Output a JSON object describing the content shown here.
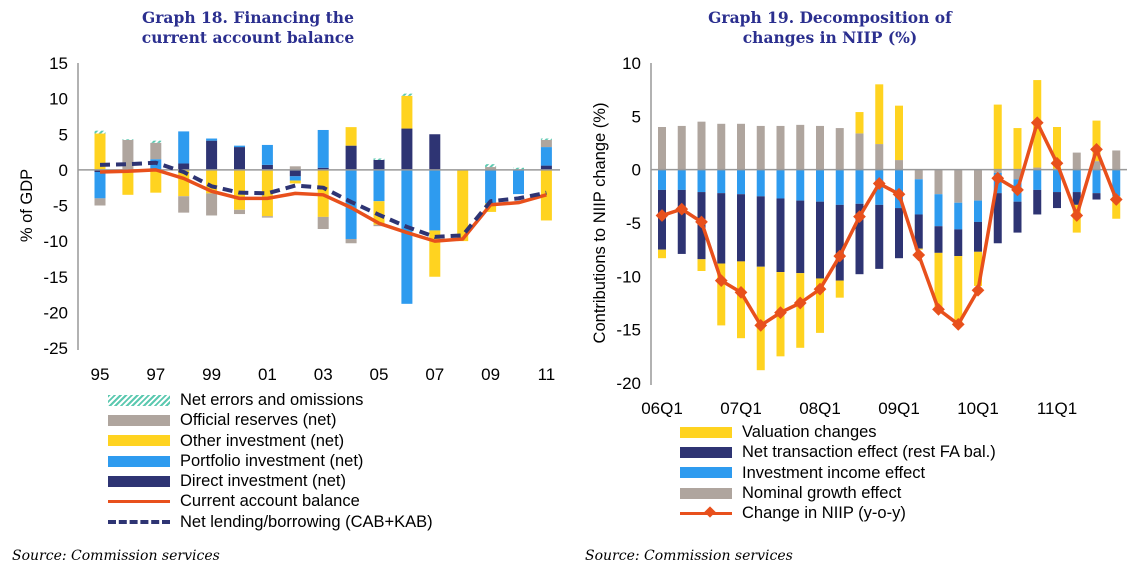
{
  "colors": {
    "direct": "#2e3473",
    "portfolio": "#2e9bef",
    "other": "#ffd320",
    "reserves": "#afa59e",
    "errors": "#5cc9b0",
    "cab": "#e8501c",
    "nlb": "#2e3473",
    "title": "#2b2f8f"
  },
  "chart_data": [
    {
      "type": "bar",
      "title": "Graph 18. Financing the current account balance",
      "ylabel": "% of GDP",
      "xlabel": "",
      "ylim": [
        -25,
        15
      ],
      "yticks": [
        "15",
        "10",
        "5",
        "0",
        "-5",
        "-10",
        "-15",
        "-20",
        "-25"
      ],
      "ytick_values": [
        15,
        10,
        5,
        0,
        -5,
        -10,
        -15,
        -20,
        -25
      ],
      "categories": [
        "95",
        "96",
        "97",
        "98",
        "99",
        "00",
        "01",
        "02",
        "03",
        "04",
        "05",
        "06",
        "07",
        "08",
        "09",
        "10",
        "11"
      ],
      "xtick_labels": [
        "95",
        "97",
        "99",
        "01",
        "03",
        "05",
        "07",
        "09",
        "11"
      ],
      "stacked": true,
      "series": [
        {
          "name": "Direct investment (net)",
          "key": "direct",
          "values": [
            -0.3,
            0,
            0,
            0.9,
            4.1,
            3.2,
            0.7,
            -0.9,
            0.3,
            3.4,
            1.4,
            5.8,
            5.0,
            0,
            0,
            0,
            0.6
          ]
        },
        {
          "name": "Portfolio investment (net)",
          "key": "portfolio",
          "values": [
            -3.7,
            0,
            1.5,
            4.5,
            0.3,
            0.2,
            2.8,
            -0.6,
            5.3,
            -9.7,
            -4.4,
            -18.8,
            -8.5,
            0,
            -4.7,
            -3.4,
            2.6
          ]
        },
        {
          "name": "Other investment (net)",
          "key": "other",
          "values": [
            5.1,
            -3.5,
            -3.2,
            -3.7,
            -3.3,
            -5.6,
            -6.5,
            -0.4,
            -6.6,
            2.6,
            -3.3,
            4.6,
            -6.5,
            -10.0,
            -1.2,
            0,
            -7.1
          ]
        },
        {
          "name": "Official reserves (net)",
          "key": "reserves",
          "values": [
            -1.0,
            4.2,
            2.3,
            -2.3,
            -3.1,
            -0.6,
            -0.2,
            0.5,
            -1.7,
            -0.6,
            -0.2,
            0,
            0,
            0,
            0.4,
            0,
            1.0
          ]
        },
        {
          "name": "Net errors and omissions",
          "key": "errors",
          "values": [
            0.4,
            0.1,
            0.3,
            0,
            0,
            0,
            0,
            0,
            0,
            0,
            0.2,
            0.3,
            0,
            0,
            0.4,
            0.3,
            0.2
          ]
        }
      ],
      "lines": [
        {
          "name": "Current account balance",
          "key": "cab",
          "values": [
            -0.3,
            -0.2,
            0,
            -1.2,
            -3.0,
            -4.0,
            -4.0,
            -3.3,
            -3.5,
            -5.3,
            -7.5,
            -8.8,
            -10.0,
            -9.7,
            -4.9,
            -4.6,
            -3.5
          ]
        },
        {
          "name": "Net lending/borrowing (CAB+KAB)",
          "key": "nlb",
          "dashed": true,
          "values": [
            0.7,
            0.8,
            1.0,
            -0.3,
            -2.3,
            -3.2,
            -3.3,
            -2.2,
            -2.5,
            -4.5,
            -6.3,
            -8.0,
            -9.4,
            -9.2,
            -4.4,
            -4.0,
            -3.2
          ]
        }
      ],
      "legend": [
        "Net errors and omissions",
        "Official reserves (net)",
        "Other investment (net)",
        "Portfolio investment (net)",
        "Direct investment (net)",
        "Current account balance",
        "Net lending/borrowing (CAB+KAB)"
      ],
      "legend_position": "bottom",
      "source": "Source: Commission services"
    },
    {
      "type": "bar",
      "title": "Graph 19. Decomposition of changes in NIIP (%)",
      "ylabel": "Contributions to NIIP change (%)",
      "xlabel": "",
      "ylim": [
        -20,
        10
      ],
      "yticks": [
        "10",
        "5",
        "0",
        "-5",
        "-10",
        "-15",
        "-20"
      ],
      "ytick_values": [
        10,
        5,
        0,
        -5,
        -10,
        -15,
        -20
      ],
      "categories": [
        "06Q1",
        "06Q2",
        "06Q3",
        "06Q4",
        "07Q1",
        "07Q2",
        "07Q3",
        "07Q4",
        "08Q1",
        "08Q2",
        "08Q3",
        "08Q4",
        "09Q1",
        "09Q2",
        "09Q3",
        "09Q4",
        "10Q1",
        "10Q2",
        "10Q3",
        "10Q4",
        "11Q1",
        "11Q2",
        "11Q3",
        "11Q4"
      ],
      "xtick_labels": [
        "06Q1",
        "07Q1",
        "08Q1",
        "09Q1",
        "10Q1",
        "11Q1"
      ],
      "stacked": true,
      "series": [
        {
          "name": "Nominal growth effect",
          "key": "reserves",
          "values": [
            4.0,
            4.1,
            4.5,
            4.3,
            4.3,
            4.1,
            4.1,
            4.2,
            4.1,
            3.9,
            3.4,
            2.4,
            0.9,
            -0.9,
            -2.3,
            -3.1,
            -2.9,
            -0.3,
            -0.9,
            0.2,
            0.1,
            1.6,
            0.8,
            1.8
          ]
        },
        {
          "name": "Investment income effect",
          "key": "portfolio",
          "values": [
            -1.9,
            -1.9,
            -2.1,
            -2.2,
            -2.3,
            -2.5,
            -2.7,
            -2.9,
            -3.0,
            -3.3,
            -3.2,
            -3.3,
            -3.6,
            -3.3,
            -3.0,
            -2.5,
            -2.0,
            -1.9,
            -2.1,
            -1.9,
            -2.1,
            -2.1,
            -2.2,
            -2.5
          ]
        },
        {
          "name": "Net transaction effect (rest FA bal.)",
          "key": "direct",
          "values": [
            -5.6,
            -6.0,
            -6.3,
            -6.6,
            -6.3,
            -6.6,
            -6.9,
            -6.8,
            -7.2,
            -7.1,
            -6.6,
            -6.0,
            -4.7,
            -3.2,
            -2.5,
            -2.5,
            -2.8,
            -4.7,
            -2.9,
            -2.3,
            -1.5,
            -1.2,
            -0.6,
            0
          ]
        },
        {
          "name": "Valuation changes",
          "key": "other",
          "values": [
            -0.8,
            0,
            -1.1,
            -5.8,
            -7.2,
            -9.7,
            -7.9,
            -7.0,
            -5.1,
            -1.6,
            2.0,
            5.6,
            5.1,
            -0.1,
            -5.3,
            -6.3,
            -3.2,
            6.1,
            3.9,
            8.2,
            3.9,
            -2.6,
            3.8,
            -2.1
          ]
        }
      ],
      "lines": [
        {
          "name": "Change in NIIP (y-o-y)",
          "key": "cab",
          "markers": true,
          "values": [
            -4.3,
            -3.7,
            -4.9,
            -10.4,
            -11.5,
            -14.6,
            -13.4,
            -12.5,
            -11.2,
            -8.1,
            -4.4,
            -1.3,
            -2.3,
            -8.0,
            -13.1,
            -14.5,
            -11.3,
            -0.8,
            -1.9,
            4.4,
            0.6,
            -4.3,
            1.9,
            -2.8
          ]
        }
      ],
      "legend": [
        "Valuation changes",
        "Net transaction effect (rest FA bal.)",
        "Investment income effect",
        "Nominal growth effect",
        "Change in NIIP (y-o-y)"
      ],
      "legend_position": "bottom",
      "source": "Source: Commission services"
    }
  ]
}
